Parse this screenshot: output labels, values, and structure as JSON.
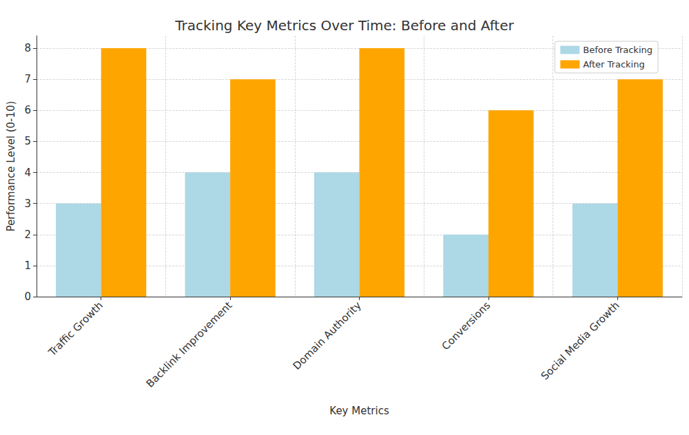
{
  "chart_data": {
    "type": "bar",
    "title": "Tracking Key Metrics Over Time: Before and After",
    "x_label": "Key Metrics",
    "y_label": "Performance Level (0-10)",
    "categories": [
      "Traffic Growth",
      "Backlink Improvement",
      "Domain Authority",
      "Conversions",
      "Social Media Growth"
    ],
    "series": [
      {
        "name": "Before Tracking",
        "color": "#add8e6",
        "values": [
          3,
          4,
          4,
          2,
          3
        ]
      },
      {
        "name": "After Tracking",
        "color": "#ffa500",
        "values": [
          8,
          7,
          8,
          6,
          7
        ]
      }
    ],
    "ylim": [
      0,
      8.4
    ],
    "yticks": [
      0,
      1,
      2,
      3,
      4,
      5,
      6,
      7,
      8
    ],
    "grid": true,
    "legend": "upper right"
  }
}
